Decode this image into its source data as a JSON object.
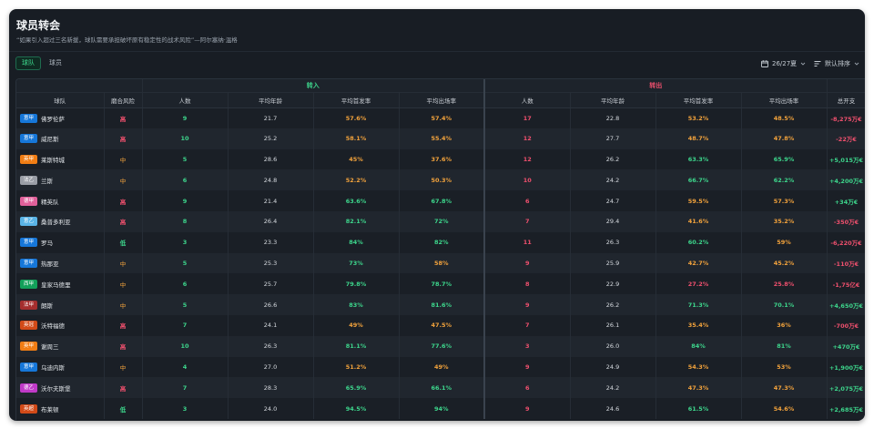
{
  "title": "球员转会",
  "subtitle": "“如果引入超过三名新援，球队需要承担破坏原有稳定性的战术风险”—阿尔塞纳·温格",
  "tabs": [
    {
      "label": "球队",
      "active": true
    },
    {
      "label": "球员",
      "active": false
    }
  ],
  "toolbar": {
    "season": "26/27夏",
    "sort": "默认排序"
  },
  "colors": {
    "green": "#3dd68c",
    "orange": "#f3a33c",
    "red": "#f0506e"
  },
  "groups": {
    "in": "转入",
    "out": "转出"
  },
  "columns": [
    "球队",
    "磨合风险",
    "人数",
    "平均年龄",
    "平均首发率",
    "平均出场率",
    "人数",
    "平均年龄",
    "平均首发率",
    "平均出场率",
    "总开支"
  ],
  "rows": [
    {
      "badge": "意甲",
      "badge_color": "#1677d9",
      "team": "佛罗伦萨",
      "risk": "高",
      "in_count": "9",
      "in_age": "21.7",
      "in_start": "57.6%",
      "in_appear": "57.4%",
      "out_count": "17",
      "out_age": "22.8",
      "out_start": "53.2%",
      "out_appear": "48.5%",
      "net": "-8,275万€"
    },
    {
      "badge": "意甲",
      "badge_color": "#1677d9",
      "team": "威尼斯",
      "risk": "高",
      "in_count": "10",
      "in_age": "25.2",
      "in_start": "58.1%",
      "in_appear": "55.4%",
      "out_count": "12",
      "out_age": "27.7",
      "out_start": "48.7%",
      "out_appear": "47.8%",
      "net": "-22万€"
    },
    {
      "badge": "英甲",
      "badge_color": "#f07d14",
      "team": "莱斯特城",
      "risk": "中",
      "in_count": "5",
      "in_age": "28.6",
      "in_start": "45%",
      "in_appear": "37.6%",
      "out_count": "12",
      "out_age": "26.2",
      "out_start": "63.3%",
      "out_appear": "65.9%",
      "net": "+5,015万€"
    },
    {
      "badge": "法乙",
      "badge_color": "#9a9ea6",
      "team": "兰斯",
      "risk": "中",
      "in_count": "6",
      "in_age": "24.8",
      "in_start": "52.2%",
      "in_appear": "50.3%",
      "out_count": "10",
      "out_age": "24.2",
      "out_start": "66.7%",
      "out_appear": "62.2%",
      "net": "+4,200万€"
    },
    {
      "badge": "德甲",
      "badge_color": "#e0609a",
      "team": "精英队",
      "risk": "高",
      "in_count": "9",
      "in_age": "21.4",
      "in_start": "63.6%",
      "in_appear": "67.8%",
      "out_count": "6",
      "out_age": "24.7",
      "out_start": "59.5%",
      "out_appear": "57.3%",
      "net": "+34万€"
    },
    {
      "badge": "意乙",
      "badge_color": "#5ab4e6",
      "team": "桑普多利亚",
      "risk": "高",
      "in_count": "8",
      "in_age": "26.4",
      "in_start": "82.1%",
      "in_appear": "72%",
      "out_count": "7",
      "out_age": "29.4",
      "out_start": "41.6%",
      "out_appear": "35.2%",
      "net": "-350万€"
    },
    {
      "badge": "意甲",
      "badge_color": "#1677d9",
      "team": "罗马",
      "risk": "低",
      "in_count": "3",
      "in_age": "23.3",
      "in_start": "84%",
      "in_appear": "82%",
      "out_count": "11",
      "out_age": "26.3",
      "out_start": "60.2%",
      "out_appear": "59%",
      "net": "-6,220万€"
    },
    {
      "badge": "意甲",
      "badge_color": "#1677d9",
      "team": "热那亚",
      "risk": "中",
      "in_count": "5",
      "in_age": "25.3",
      "in_start": "73%",
      "in_appear": "58%",
      "out_count": "9",
      "out_age": "25.9",
      "out_start": "42.7%",
      "out_appear": "45.2%",
      "net": "-110万€"
    },
    {
      "badge": "西甲",
      "badge_color": "#12a05a",
      "team": "皇家马德里",
      "risk": "中",
      "in_count": "6",
      "in_age": "25.7",
      "in_start": "79.8%",
      "in_appear": "78.7%",
      "out_count": "8",
      "out_age": "22.9",
      "out_start": "27.2%",
      "out_appear": "25.8%",
      "net": "-1,75亿€"
    },
    {
      "badge": "法甲",
      "badge_color": "#a52e2e",
      "team": "朗斯",
      "risk": "中",
      "in_count": "5",
      "in_age": "26.6",
      "in_start": "83%",
      "in_appear": "81.6%",
      "out_count": "9",
      "out_age": "26.2",
      "out_start": "71.3%",
      "out_appear": "70.1%",
      "net": "+4,650万€"
    },
    {
      "badge": "英冠",
      "badge_color": "#d24a18",
      "team": "沃特福德",
      "risk": "高",
      "in_count": "7",
      "in_age": "24.1",
      "in_start": "49%",
      "in_appear": "47.5%",
      "out_count": "7",
      "out_age": "26.1",
      "out_start": "35.4%",
      "out_appear": "36%",
      "net": "-700万€"
    },
    {
      "badge": "英甲",
      "badge_color": "#f07d14",
      "team": "谢周三",
      "risk": "高",
      "in_count": "10",
      "in_age": "26.3",
      "in_start": "81.1%",
      "in_appear": "77.6%",
      "out_count": "3",
      "out_age": "26.0",
      "out_start": "84%",
      "out_appear": "81%",
      "net": "+470万€"
    },
    {
      "badge": "意甲",
      "badge_color": "#1677d9",
      "team": "乌迪内斯",
      "risk": "中",
      "in_count": "4",
      "in_age": "27.0",
      "in_start": "51.2%",
      "in_appear": "49%",
      "out_count": "9",
      "out_age": "24.9",
      "out_start": "54.3%",
      "out_appear": "53%",
      "net": "+1,900万€"
    },
    {
      "badge": "德乙",
      "badge_color": "#c03ac8",
      "team": "沃尔夫斯堡",
      "risk": "高",
      "in_count": "7",
      "in_age": "28.3",
      "in_start": "65.9%",
      "in_appear": "66.1%",
      "out_count": "6",
      "out_age": "24.2",
      "out_start": "47.3%",
      "out_appear": "47.3%",
      "net": "+2,075万€"
    },
    {
      "badge": "英超",
      "badge_color": "#d24a18",
      "team": "布莱顿",
      "risk": "低",
      "in_count": "3",
      "in_age": "24.0",
      "in_start": "94.5%",
      "in_appear": "94%",
      "out_count": "9",
      "out_age": "24.6",
      "out_start": "61.5%",
      "out_appear": "54.6%",
      "net": "+2,685万€"
    }
  ]
}
